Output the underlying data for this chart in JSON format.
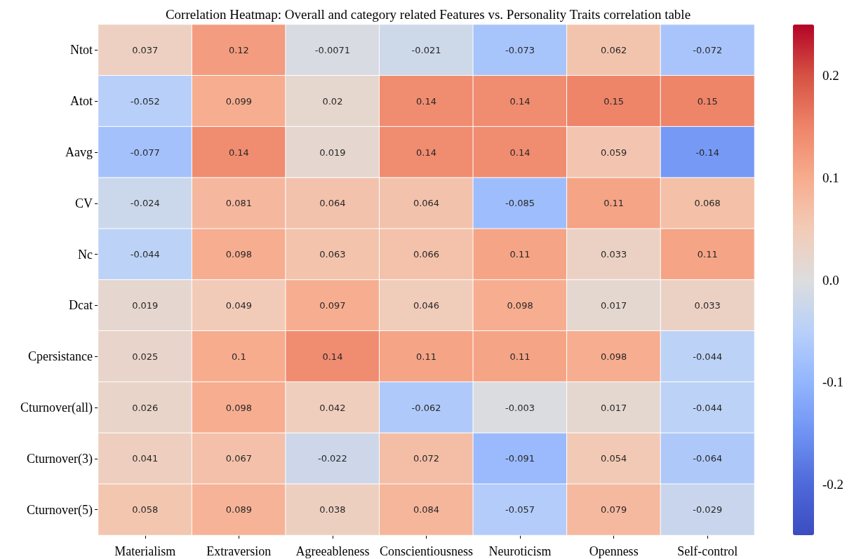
{
  "chart_data": {
    "type": "heatmap",
    "title": "Correlation Heatmap: Overall and category related Features vs. Personality Traits correlation table",
    "categories": [
      "Materialism",
      "Extraversion",
      "Agreeableness",
      "Conscientiousness",
      "Neuroticism",
      "Openness",
      "Self-control"
    ],
    "y_categories": [
      "Ntot",
      "Atot",
      "Aavg",
      "CV",
      "Nc",
      "Dcat",
      "Cpersistance",
      "Cturnover(all)",
      "Cturnover(3)",
      "Cturnover(5)"
    ],
    "cells": [
      [
        0.037,
        0.12,
        -0.0071,
        -0.021,
        -0.073,
        0.062,
        -0.072
      ],
      [
        -0.052,
        0.099,
        0.02,
        0.14,
        0.14,
        0.15,
        0.15
      ],
      [
        -0.077,
        0.14,
        0.019,
        0.14,
        0.14,
        0.059,
        -0.14
      ],
      [
        -0.024,
        0.081,
        0.064,
        0.064,
        -0.085,
        0.11,
        0.068
      ],
      [
        -0.044,
        0.098,
        0.063,
        0.066,
        0.11,
        0.033,
        0.11
      ],
      [
        0.019,
        0.049,
        0.097,
        0.046,
        0.098,
        0.017,
        0.033
      ],
      [
        0.025,
        0.1,
        0.14,
        0.11,
        0.11,
        0.098,
        -0.044
      ],
      [
        0.026,
        0.098,
        0.042,
        -0.062,
        -0.003,
        0.017,
        -0.044
      ],
      [
        0.041,
        0.067,
        -0.022,
        0.072,
        -0.091,
        0.054,
        -0.064
      ],
      [
        0.058,
        0.089,
        0.038,
        0.084,
        -0.057,
        0.079,
        -0.029
      ]
    ],
    "clim": [
      -0.25,
      0.25
    ],
    "cticks": [
      {
        "value": -0.2,
        "label": "-0.2"
      },
      {
        "value": -0.1,
        "label": "-0.1"
      },
      {
        "value": 0,
        "label": "0.0"
      },
      {
        "value": 0.1,
        "label": "0.1"
      },
      {
        "value": 0.2,
        "label": "0.2"
      }
    ],
    "data_labels": true
  }
}
